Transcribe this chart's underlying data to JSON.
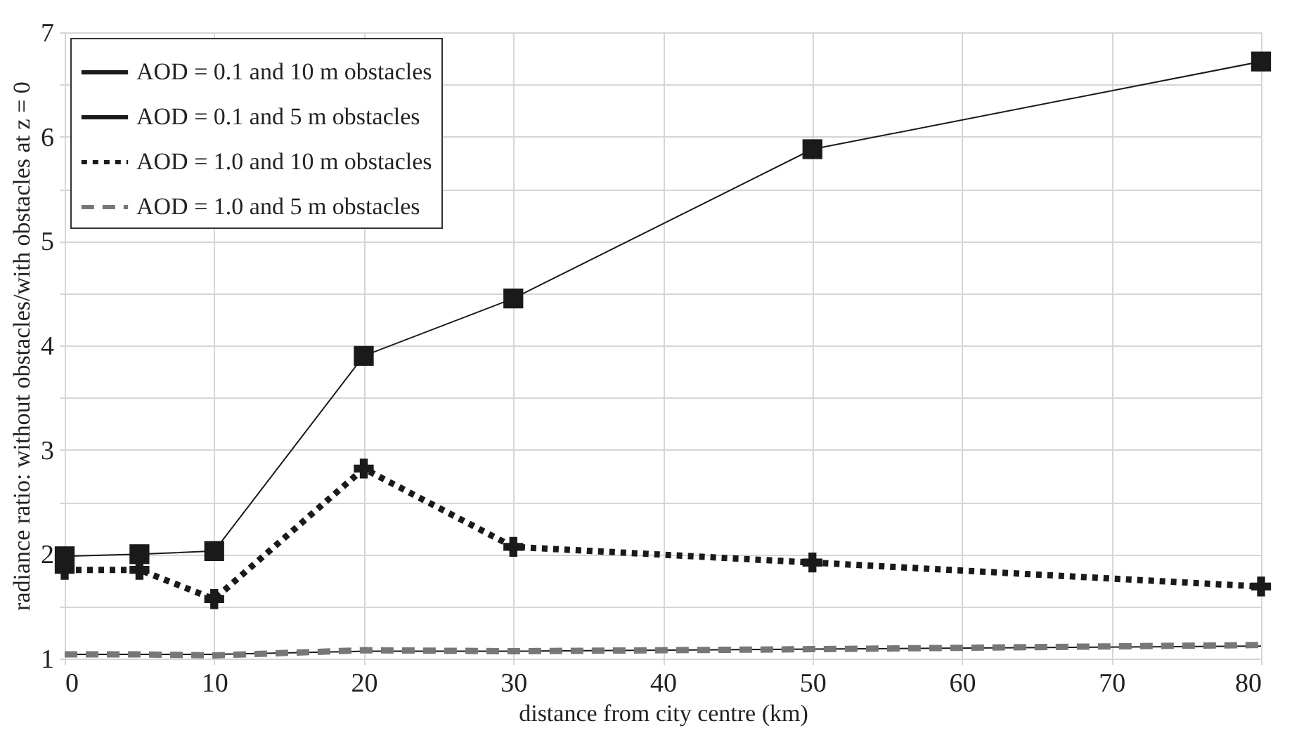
{
  "chart_data": {
    "type": "line",
    "xlabel": "distance from city centre (km)",
    "ylabel": "radiance ratio: without obstacles/with obstacles at z = 0",
    "x": [
      0,
      5,
      10,
      20,
      30,
      50,
      80
    ],
    "series": [
      {
        "name": "AOD = 0.1 and 10 m obstacles",
        "color": "#1a1a1a",
        "marker": "square",
        "line_style": "solid",
        "values": [
          1.98,
          2.0,
          2.03,
          3.9,
          4.45,
          5.88,
          6.72
        ]
      },
      {
        "name": "AOD = 0.1 and 5 m obstacles",
        "color": "#1a1a1a",
        "marker": "none",
        "line_style": "solid",
        "values": [
          1.04,
          1.04,
          1.04,
          1.07,
          1.07,
          1.09,
          1.12
        ]
      },
      {
        "name": "AOD = 1.0 and 10 m obstacles",
        "color": "#1a1a1a",
        "marker": "cross",
        "line_style": "dotted",
        "values": [
          1.85,
          1.85,
          1.57,
          2.82,
          2.07,
          1.92,
          1.69
        ]
      },
      {
        "name": "AOD = 1.0 and 5 m obstacles",
        "color": "#777777",
        "marker": "none",
        "line_style": "dashed",
        "values": [
          1.04,
          1.04,
          1.03,
          1.08,
          1.07,
          1.09,
          1.13
        ]
      }
    ],
    "xlim": [
      0,
      80
    ],
    "xticks": [
      0,
      10,
      20,
      30,
      40,
      50,
      60,
      70,
      80
    ],
    "ylim": [
      1,
      7
    ],
    "yticks": [
      1,
      {
        "value": 1.5,
        "label": null
      },
      2,
      {
        "value": 2.5,
        "label": null
      },
      3,
      {
        "value": 3.5,
        "label": null
      },
      4,
      {
        "value": 4.5,
        "label": null
      },
      5,
      {
        "value": 5.5,
        "label": null
      },
      6,
      {
        "value": 6.5,
        "label": null
      },
      7
    ],
    "grid": true,
    "legend": "top left"
  }
}
